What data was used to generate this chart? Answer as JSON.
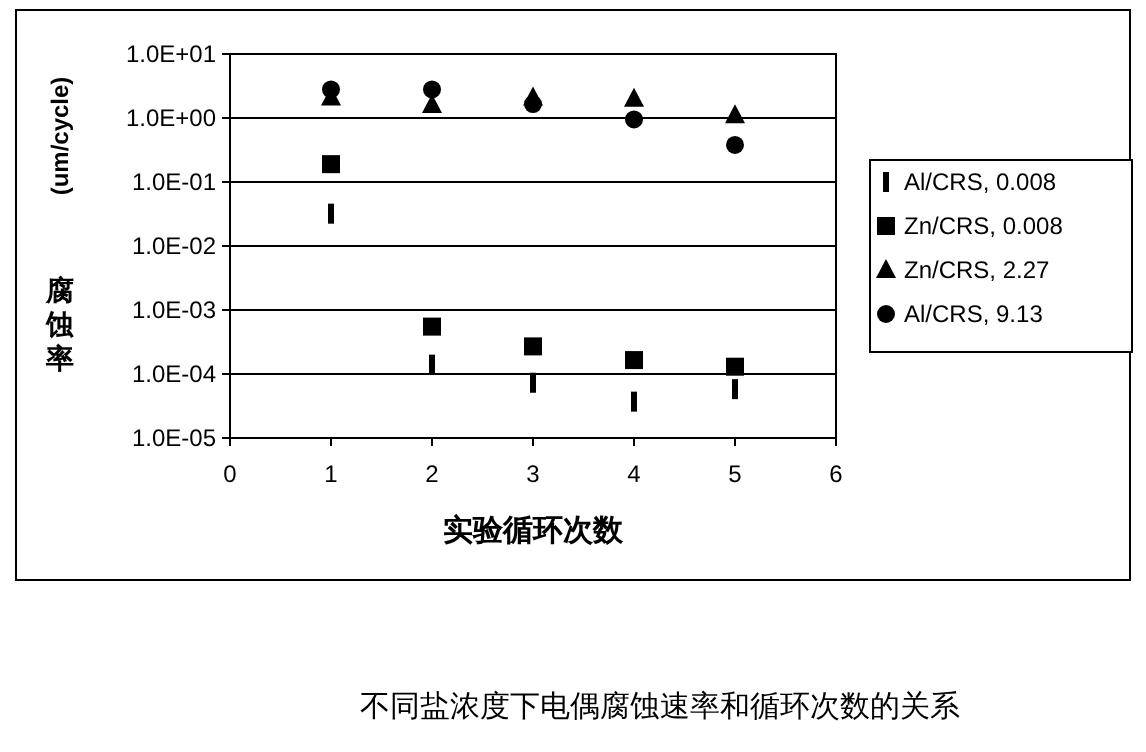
{
  "chart_data": {
    "type": "scatter",
    "xlabel": "实验循环次数",
    "ylabel": "(um/cycle)",
    "x": [
      1,
      2,
      3,
      4,
      5
    ],
    "series": [
      {
        "name": "Al/CRS, 0.008",
        "color": "#000000",
        "values": [
          0.032,
          0.00014,
          7.3e-05,
          3.7e-05,
          5.8e-05
        ]
      },
      {
        "name": "Zn/CRS, 0.008",
        "color": "#000000",
        "marker": "square",
        "values": [
          0.19,
          0.00055,
          0.00027,
          0.000165,
          0.00013
        ]
      },
      {
        "name": "Zn/CRS, 2.27",
        "color": "#000000",
        "marker": "triangle",
        "values": [
          2.1,
          1.6,
          2.1,
          2.0,
          1.1
        ]
      },
      {
        "name": "Al/CRS, 9.13",
        "color": "#000000",
        "marker": "circle",
        "values": [
          2.8,
          2.8,
          1.65,
          0.95,
          0.38
        ]
      }
    ],
    "log": "y",
    "xlim": [
      0,
      6
    ],
    "xticks": [
      0,
      1,
      2,
      3,
      4,
      5,
      6
    ],
    "ylim": [
      1e-05,
      10
    ],
    "yticks": [
      {
        "value": 1e-05,
        "label": "1.0E-05"
      },
      {
        "value": 0.0001,
        "label": "1.0E-04"
      },
      {
        "value": 0.001,
        "label": "1.0E-03"
      },
      {
        "value": 0.01,
        "label": "1.0E-02"
      },
      {
        "value": 0.1,
        "label": "1.0E-01"
      },
      {
        "value": 1,
        "label": "1.0E+00"
      },
      {
        "value": 10,
        "label": "1.0E+01"
      }
    ],
    "grid": "y",
    "legend": "right",
    "annotations": [
      "腐蚀率",
      "不同盐浓度下电偶腐蚀速率和循环次数的关系"
    ]
  }
}
